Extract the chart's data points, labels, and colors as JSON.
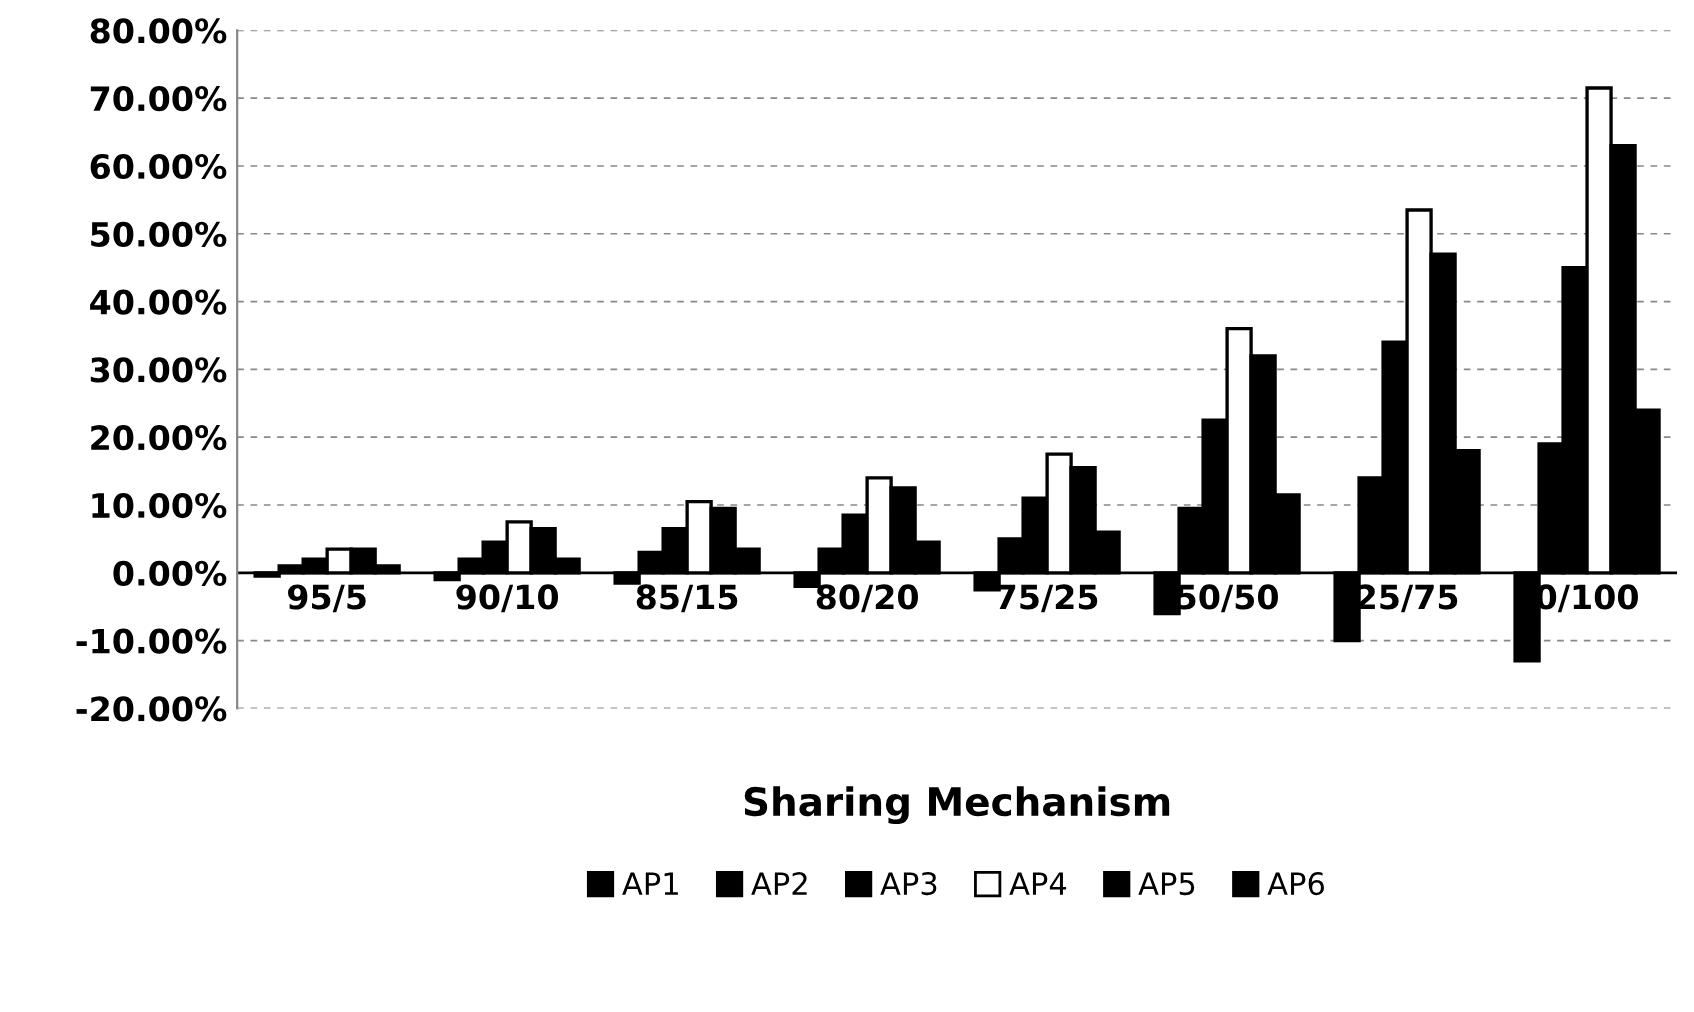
{
  "chart_data": {
    "type": "bar",
    "xlabel": "Sharing Mechanism",
    "categories": [
      "95/5",
      "90/10",
      "85/15",
      "80/20",
      "75/25",
      "50/50",
      "25/75",
      "0/100"
    ],
    "series": [
      {
        "name": "AP1",
        "color": "#000000",
        "values": [
          -0.5,
          -1,
          -1.5,
          -2,
          -2.5,
          -6,
          -10,
          -13
        ]
      },
      {
        "name": "AP2",
        "color": "#000000",
        "values": [
          1,
          2,
          3,
          3.5,
          5,
          9.5,
          14,
          19
        ]
      },
      {
        "name": "AP3",
        "color": "#000000",
        "values": [
          2,
          4.5,
          6.5,
          8.5,
          11,
          22.5,
          34,
          45
        ]
      },
      {
        "name": "AP4",
        "color": "#ffffff",
        "values": [
          3.5,
          7.5,
          10.5,
          14,
          17.5,
          36,
          53.5,
          71.5
        ]
      },
      {
        "name": "AP5",
        "color": "#000000",
        "values": [
          3.5,
          6.5,
          9.5,
          12.5,
          15.5,
          32,
          47,
          63
        ]
      },
      {
        "name": "AP6",
        "color": "#000000",
        "values": [
          1,
          2,
          3.5,
          4.5,
          6,
          11.5,
          18,
          24
        ]
      }
    ],
    "ylim": [
      -20,
      80
    ],
    "yticks": [
      {
        "value": -20,
        "label": "-20.00%"
      },
      {
        "value": -10,
        "label": "-10.00%"
      },
      {
        "value": 0,
        "label": "0.00%"
      },
      {
        "value": 10,
        "label": "10.00%"
      },
      {
        "value": 20,
        "label": "20.00%"
      },
      {
        "value": 30,
        "label": "30.00%"
      },
      {
        "value": 40,
        "label": "40.00%"
      },
      {
        "value": 50,
        "label": "50.00%"
      },
      {
        "value": 60,
        "label": "60.00%"
      },
      {
        "value": 70,
        "label": "70.00%"
      },
      {
        "value": 80,
        "label": "80.00%"
      }
    ],
    "grid": "y",
    "legend": "bottom"
  }
}
